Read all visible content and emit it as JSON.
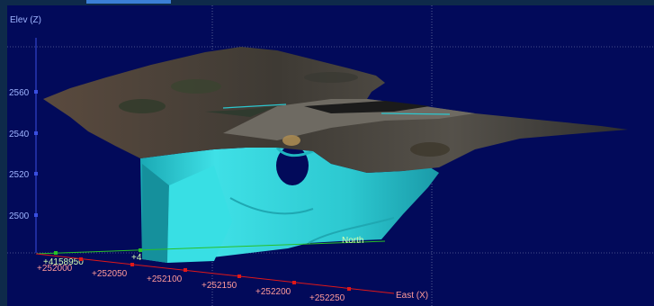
{
  "colors": {
    "background": "#020a5a",
    "frame": "#0e2a4a",
    "z_axis": "#3a4fe0",
    "x_axis": "#e01818",
    "y_axis": "#28c028",
    "x_labels": "#ff9a9a",
    "y_labels": "#d8ffb0",
    "z_labels": "#9fb4ff",
    "grid": "#8c94b8",
    "surface": "#34d8dc",
    "terrain": "#4a3e35"
  },
  "view": {
    "z_axis_label": "Elev (Z)",
    "x_axis_label": "East (X)",
    "y_axis_label": "North",
    "z_ticks": [
      "2560",
      "2540",
      "2520",
      "2500"
    ],
    "x_ticks": [
      "+252000",
      "+252050",
      "+252100",
      "+252150",
      "+252200",
      "+252250"
    ],
    "y_ticks": [
      "+4158950",
      "+4"
    ]
  }
}
